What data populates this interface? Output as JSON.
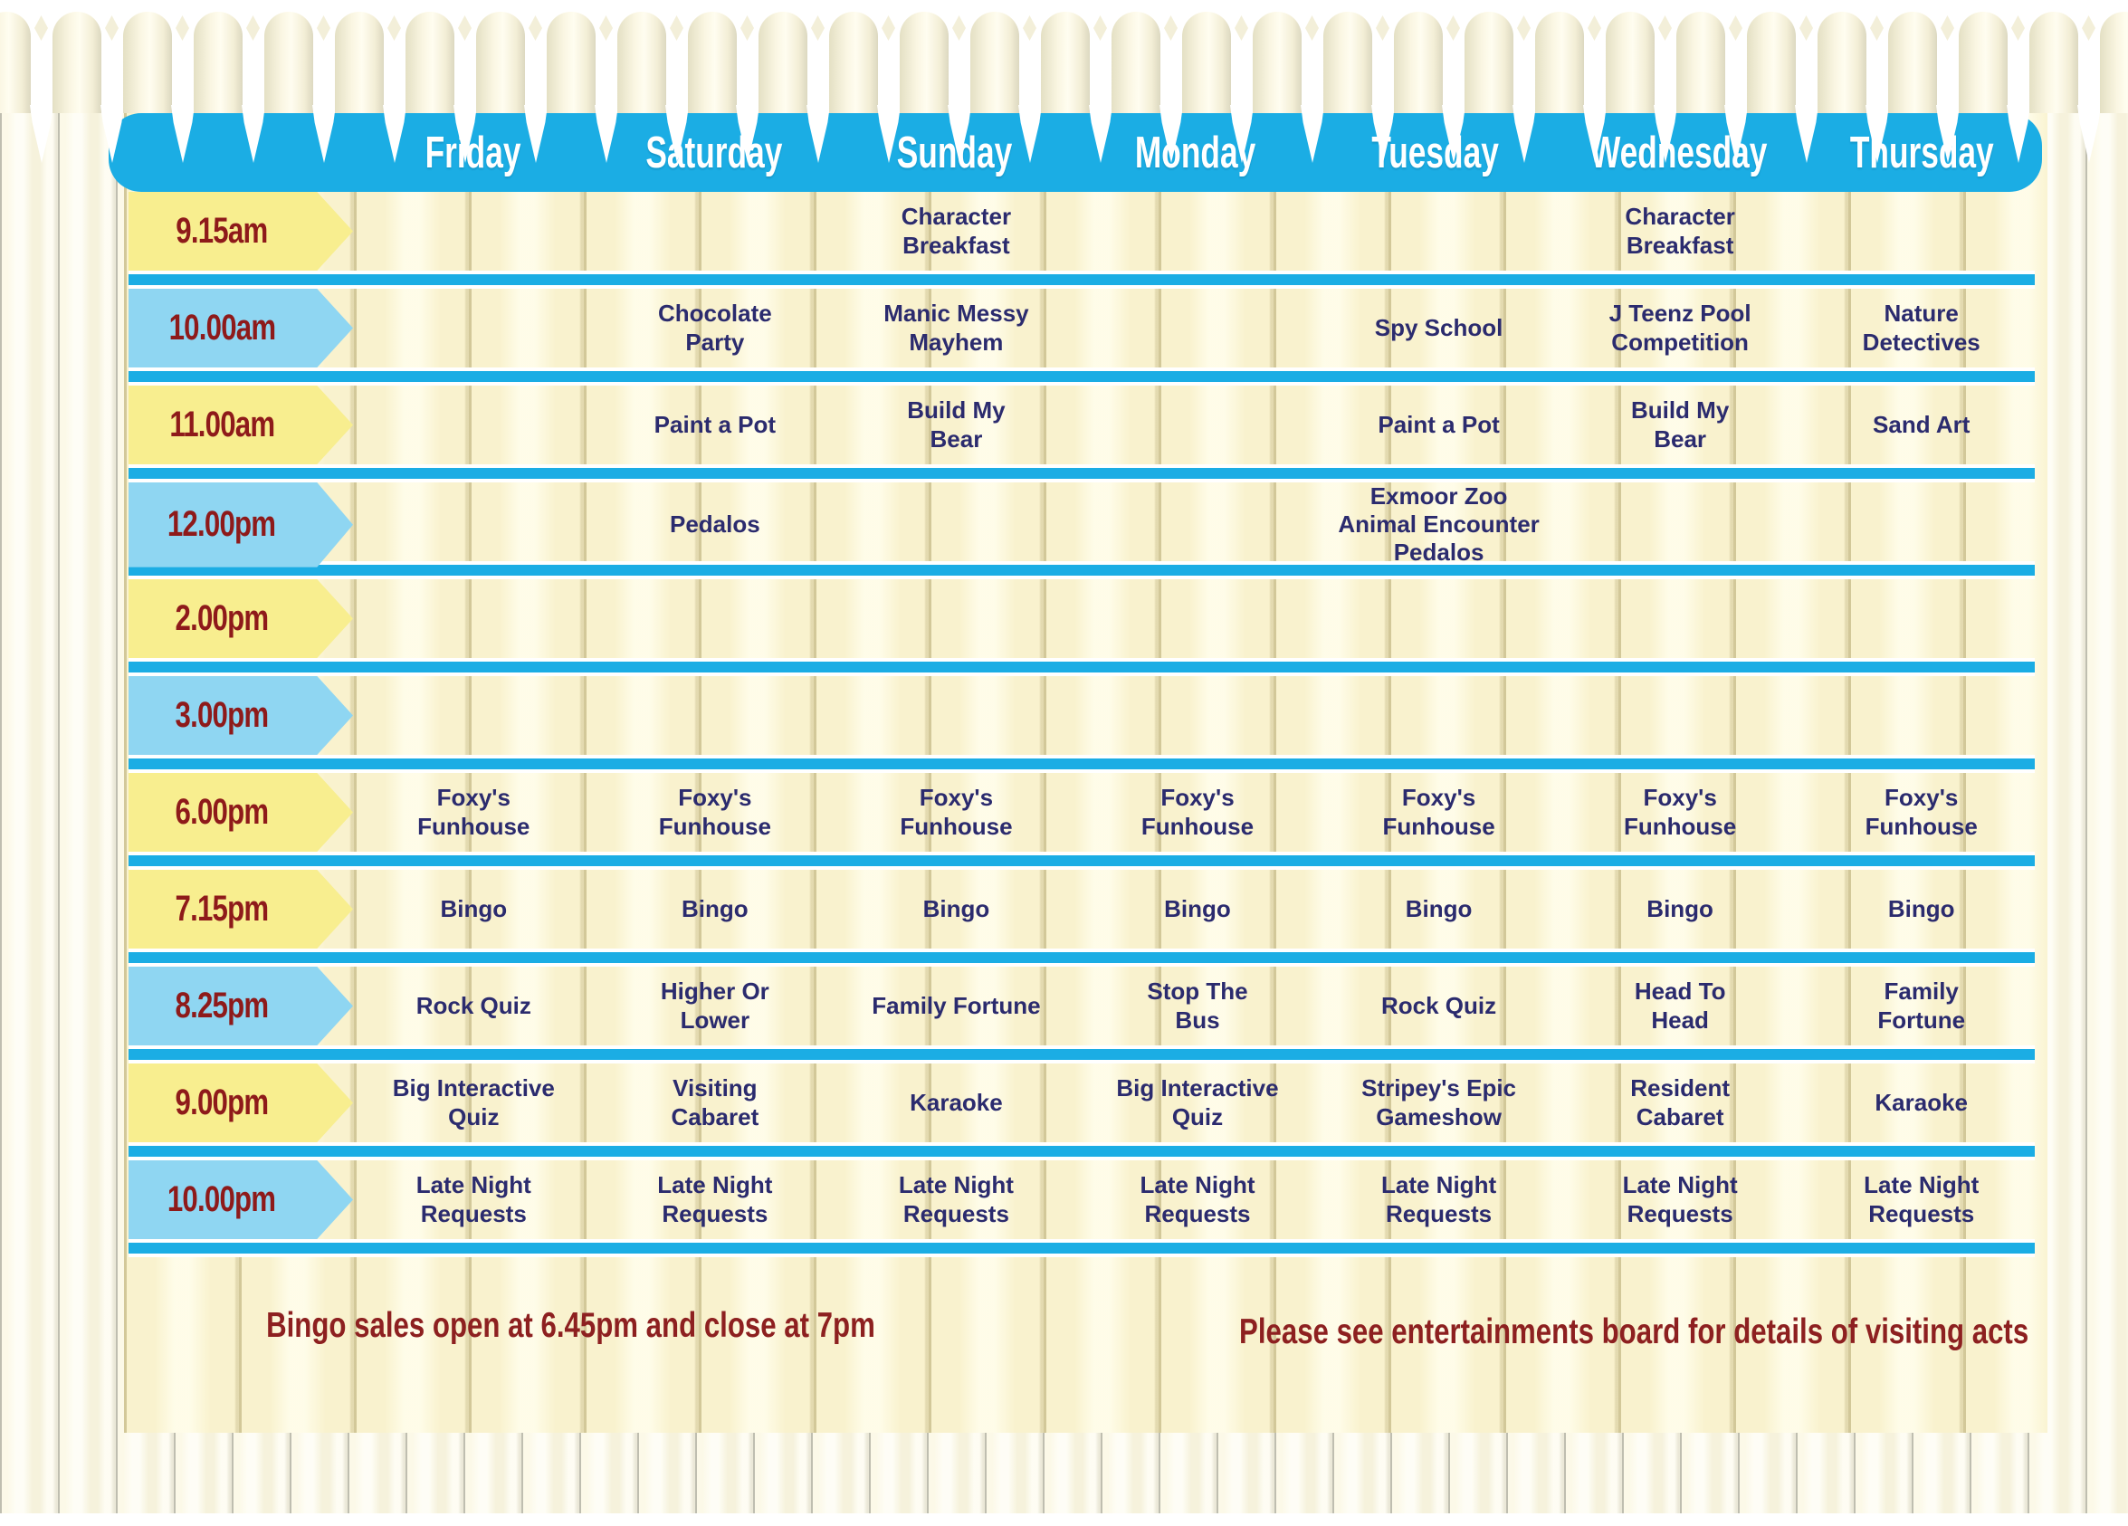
{
  "header": {
    "days": [
      "Friday",
      "Saturday",
      "Sunday",
      "Monday",
      "Tuesday",
      "Wednesday",
      "Thursday"
    ]
  },
  "schedule": {
    "rows": [
      {
        "time": "9.15am",
        "style": "yellow",
        "cells": [
          "",
          "",
          "Character\nBreakfast",
          "",
          "",
          "Character\nBreakfast",
          ""
        ]
      },
      {
        "time": "10.00am",
        "style": "blue",
        "cells": [
          "",
          "Chocolate\nParty",
          "Manic Messy\nMayhem",
          "",
          "Spy School",
          "J Teenz Pool\nCompetition",
          "Nature\nDetectives"
        ]
      },
      {
        "time": "11.00am",
        "style": "yellow",
        "cells": [
          "",
          "Paint a Pot",
          "Build My\nBear",
          "",
          "Paint a Pot",
          "Build My\nBear",
          "Sand Art"
        ]
      },
      {
        "time": "12.00pm",
        "style": "blue",
        "cells": [
          "",
          "Pedalos",
          "",
          "",
          "Exmoor Zoo\nAnimal Encounter\nPedalos",
          "",
          ""
        ]
      },
      {
        "time": "2.00pm",
        "style": "yellow",
        "cells": [
          "",
          "",
          "",
          "",
          "",
          "",
          ""
        ]
      },
      {
        "time": "3.00pm",
        "style": "blue",
        "cells": [
          "",
          "",
          "",
          "",
          "",
          "",
          ""
        ]
      },
      {
        "time": "6.00pm",
        "style": "yellow",
        "cells": [
          "Foxy's\nFunhouse",
          "Foxy's\nFunhouse",
          "Foxy's\nFunhouse",
          "Foxy's\nFunhouse",
          "Foxy's\nFunhouse",
          "Foxy's\nFunhouse",
          "Foxy's\nFunhouse"
        ]
      },
      {
        "time": "7.15pm",
        "style": "yellow",
        "cells": [
          "Bingo",
          "Bingo",
          "Bingo",
          "Bingo",
          "Bingo",
          "Bingo",
          "Bingo"
        ]
      },
      {
        "time": "8.25pm",
        "style": "blue",
        "cells": [
          "Rock Quiz",
          "Higher Or\nLower",
          "Family Fortune",
          "Stop The\nBus",
          "Rock Quiz",
          "Head To\nHead",
          "Family\nFortune"
        ]
      },
      {
        "time": "9.00pm",
        "style": "yellow",
        "cells": [
          "Big Interactive\nQuiz",
          "Visiting\nCabaret",
          "Karaoke",
          "Big Interactive\nQuiz",
          "Stripey's Epic\nGameshow",
          "Resident\nCabaret",
          "Karaoke"
        ]
      },
      {
        "time": "10.00pm",
        "style": "blue",
        "cells": [
          "Late Night\nRequests",
          "Late Night\nRequests",
          "Late Night\nRequests",
          "Late Night\nRequests",
          "Late Night\nRequests",
          "Late Night\nRequests",
          "Late Night\nRequests"
        ]
      }
    ]
  },
  "notes": {
    "bingo": "Bingo sales open at 6.45pm and close at 7pm",
    "visiting": "Please see entertainments board for details of visiting acts"
  },
  "colors": {
    "band_blue": "#1BADE4",
    "arrow_yellow": "#F8EE8F",
    "arrow_blue": "#8FD6F2",
    "time_text": "#8E1A1A",
    "cell_text": "#2B2B6E",
    "note_text": "#8D2020",
    "fence_cream": "#F9F2CE"
  }
}
